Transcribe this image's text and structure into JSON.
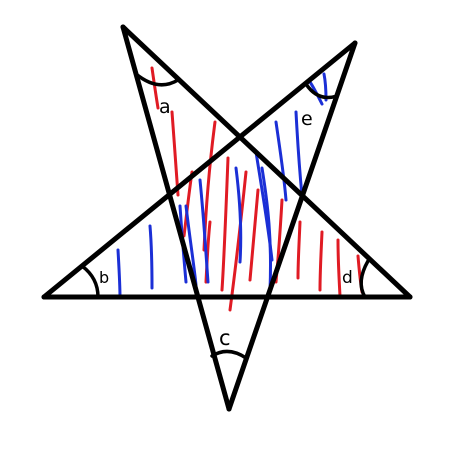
{
  "diagram": {
    "labels": {
      "a": "a",
      "b": "b",
      "c": "c",
      "d": "d",
      "e": "e"
    },
    "colors": {
      "outline": "#000000",
      "hatch_red": "#e01b24",
      "hatch_blue": "#1b2fd6",
      "background": "#ffffff"
    }
  }
}
